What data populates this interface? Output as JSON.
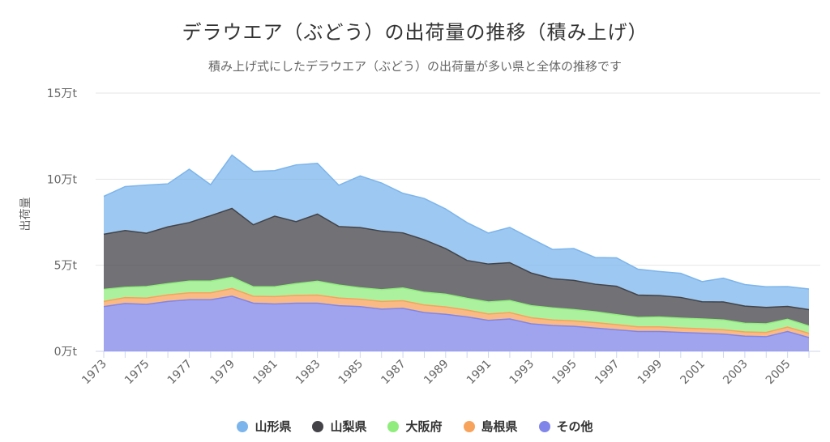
{
  "chart_data": {
    "type": "area",
    "stacked": true,
    "title": "デラウエア（ぶどう）の出荷量の推移（積み上げ）",
    "subtitle": "積み上げ式にしたデラウエア（ぶどう）の出荷量が多い県と全体の推移です",
    "ylabel": "出荷量",
    "xlabel": "",
    "ylim": [
      0,
      150000
    ],
    "yticks": [
      0,
      50000,
      100000,
      150000
    ],
    "ytick_labels": [
      "0万t",
      "5万t",
      "10万t",
      "15万t"
    ],
    "x": [
      1973,
      1974,
      1975,
      1976,
      1977,
      1978,
      1979,
      1980,
      1981,
      1982,
      1983,
      1984,
      1985,
      1986,
      1987,
      1988,
      1989,
      1990,
      1991,
      1992,
      1993,
      1994,
      1995,
      1996,
      1997,
      1998,
      1999,
      2000,
      2001,
      2002,
      2003,
      2004,
      2005,
      2006
    ],
    "xtick_labels": [
      "1973",
      "1975",
      "1977",
      "1979",
      "1981",
      "1983",
      "1985",
      "1987",
      "1989",
      "1991",
      "1993",
      "1995",
      "1997",
      "1999",
      "2001",
      "2003",
      "2005"
    ],
    "grid": true,
    "legend_position": "bottom",
    "series": [
      {
        "name": "その他",
        "color": "#8085e9",
        "values": [
          26000,
          27800,
          27300,
          29000,
          30000,
          30000,
          32000,
          28000,
          27500,
          28000,
          28000,
          26500,
          26000,
          24500,
          25000,
          22500,
          21500,
          20000,
          18000,
          18800,
          16000,
          15000,
          14500,
          13500,
          12500,
          11500,
          11500,
          11000,
          10500,
          10000,
          8800,
          8500,
          11500,
          8000
        ]
      },
      {
        "name": "島根県",
        "color": "#f7a35c",
        "values": [
          3000,
          3400,
          3600,
          3800,
          4000,
          4000,
          4500,
          4000,
          4300,
          4500,
          4700,
          4500,
          4300,
          4500,
          4400,
          4400,
          4300,
          4000,
          3700,
          3700,
          3500,
          3200,
          3200,
          3200,
          3000,
          2700,
          2700,
          2600,
          2600,
          2500,
          2500,
          2500,
          2600,
          2500
        ]
      },
      {
        "name": "大阪府",
        "color": "#90ed7d",
        "values": [
          7000,
          6000,
          6700,
          6500,
          6800,
          6800,
          6500,
          5500,
          5700,
          6800,
          8000,
          7500,
          6600,
          6800,
          7400,
          7400,
          7400,
          6800,
          7000,
          7000,
          7000,
          7000,
          6500,
          6300,
          5800,
          5500,
          5700,
          5700,
          5700,
          5700,
          5000,
          5000,
          4500,
          4200
        ]
      },
      {
        "name": "山梨県",
        "color": "#434348",
        "values": [
          32000,
          33000,
          31000,
          33000,
          34000,
          38000,
          40000,
          36000,
          41000,
          36000,
          39000,
          34000,
          35000,
          34000,
          32000,
          30500,
          26500,
          22000,
          22000,
          22000,
          19000,
          17000,
          17000,
          16000,
          16500,
          13000,
          12500,
          12000,
          10000,
          10500,
          10000,
          9500,
          7500,
          9500
        ]
      },
      {
        "name": "山形県",
        "color": "#7cb5ec",
        "values": [
          22000,
          25500,
          28000,
          25000,
          31000,
          18000,
          31000,
          31000,
          26500,
          33000,
          29500,
          24000,
          30000,
          28000,
          23000,
          24000,
          23000,
          22000,
          18000,
          20500,
          20000,
          17000,
          18500,
          15500,
          16500,
          15000,
          14000,
          14000,
          11700,
          13800,
          12500,
          12000,
          11500,
          12000
        ]
      }
    ]
  }
}
